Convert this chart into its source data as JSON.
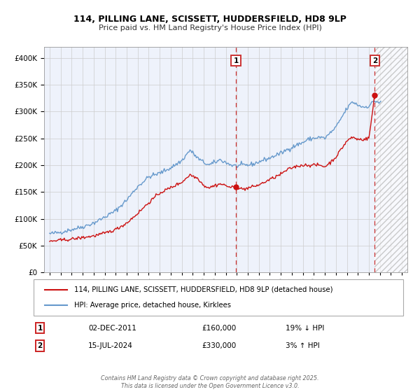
{
  "title_line1": "114, PILLING LANE, SCISSETT, HUDDERSFIELD, HD8 9LP",
  "title_line2": "Price paid vs. HM Land Registry's House Price Index (HPI)",
  "legend_entry1": "114, PILLING LANE, SCISSETT, HUDDERSFIELD, HD8 9LP (detached house)",
  "legend_entry2": "HPI: Average price, detached house, Kirklees",
  "annotation1_num": "1",
  "annotation1_date": "02-DEC-2011",
  "annotation1_price": "£160,000",
  "annotation1_hpi": "19% ↓ HPI",
  "annotation2_num": "2",
  "annotation2_date": "15-JUL-2024",
  "annotation2_price": "£330,000",
  "annotation2_hpi": "3% ↑ HPI",
  "footer": "Contains HM Land Registry data © Crown copyright and database right 2025.\nThis data is licensed under the Open Government Licence v3.0.",
  "xlim_start": 1994.5,
  "xlim_end": 2027.5,
  "ylim_min": 0,
  "ylim_max": 420000,
  "sale1_year": 2011.92,
  "sale1_price": 160000,
  "sale2_year": 2024.54,
  "sale2_price": 330000,
  "vline1_year": 2011.92,
  "vline2_year": 2024.54,
  "bg_color": "#eef2fb",
  "hatched_region_start": 2024.54,
  "hatched_region_end": 2027.5,
  "property_color": "#cc1111",
  "hpi_color": "#6699cc",
  "grid_color": "#cccccc"
}
